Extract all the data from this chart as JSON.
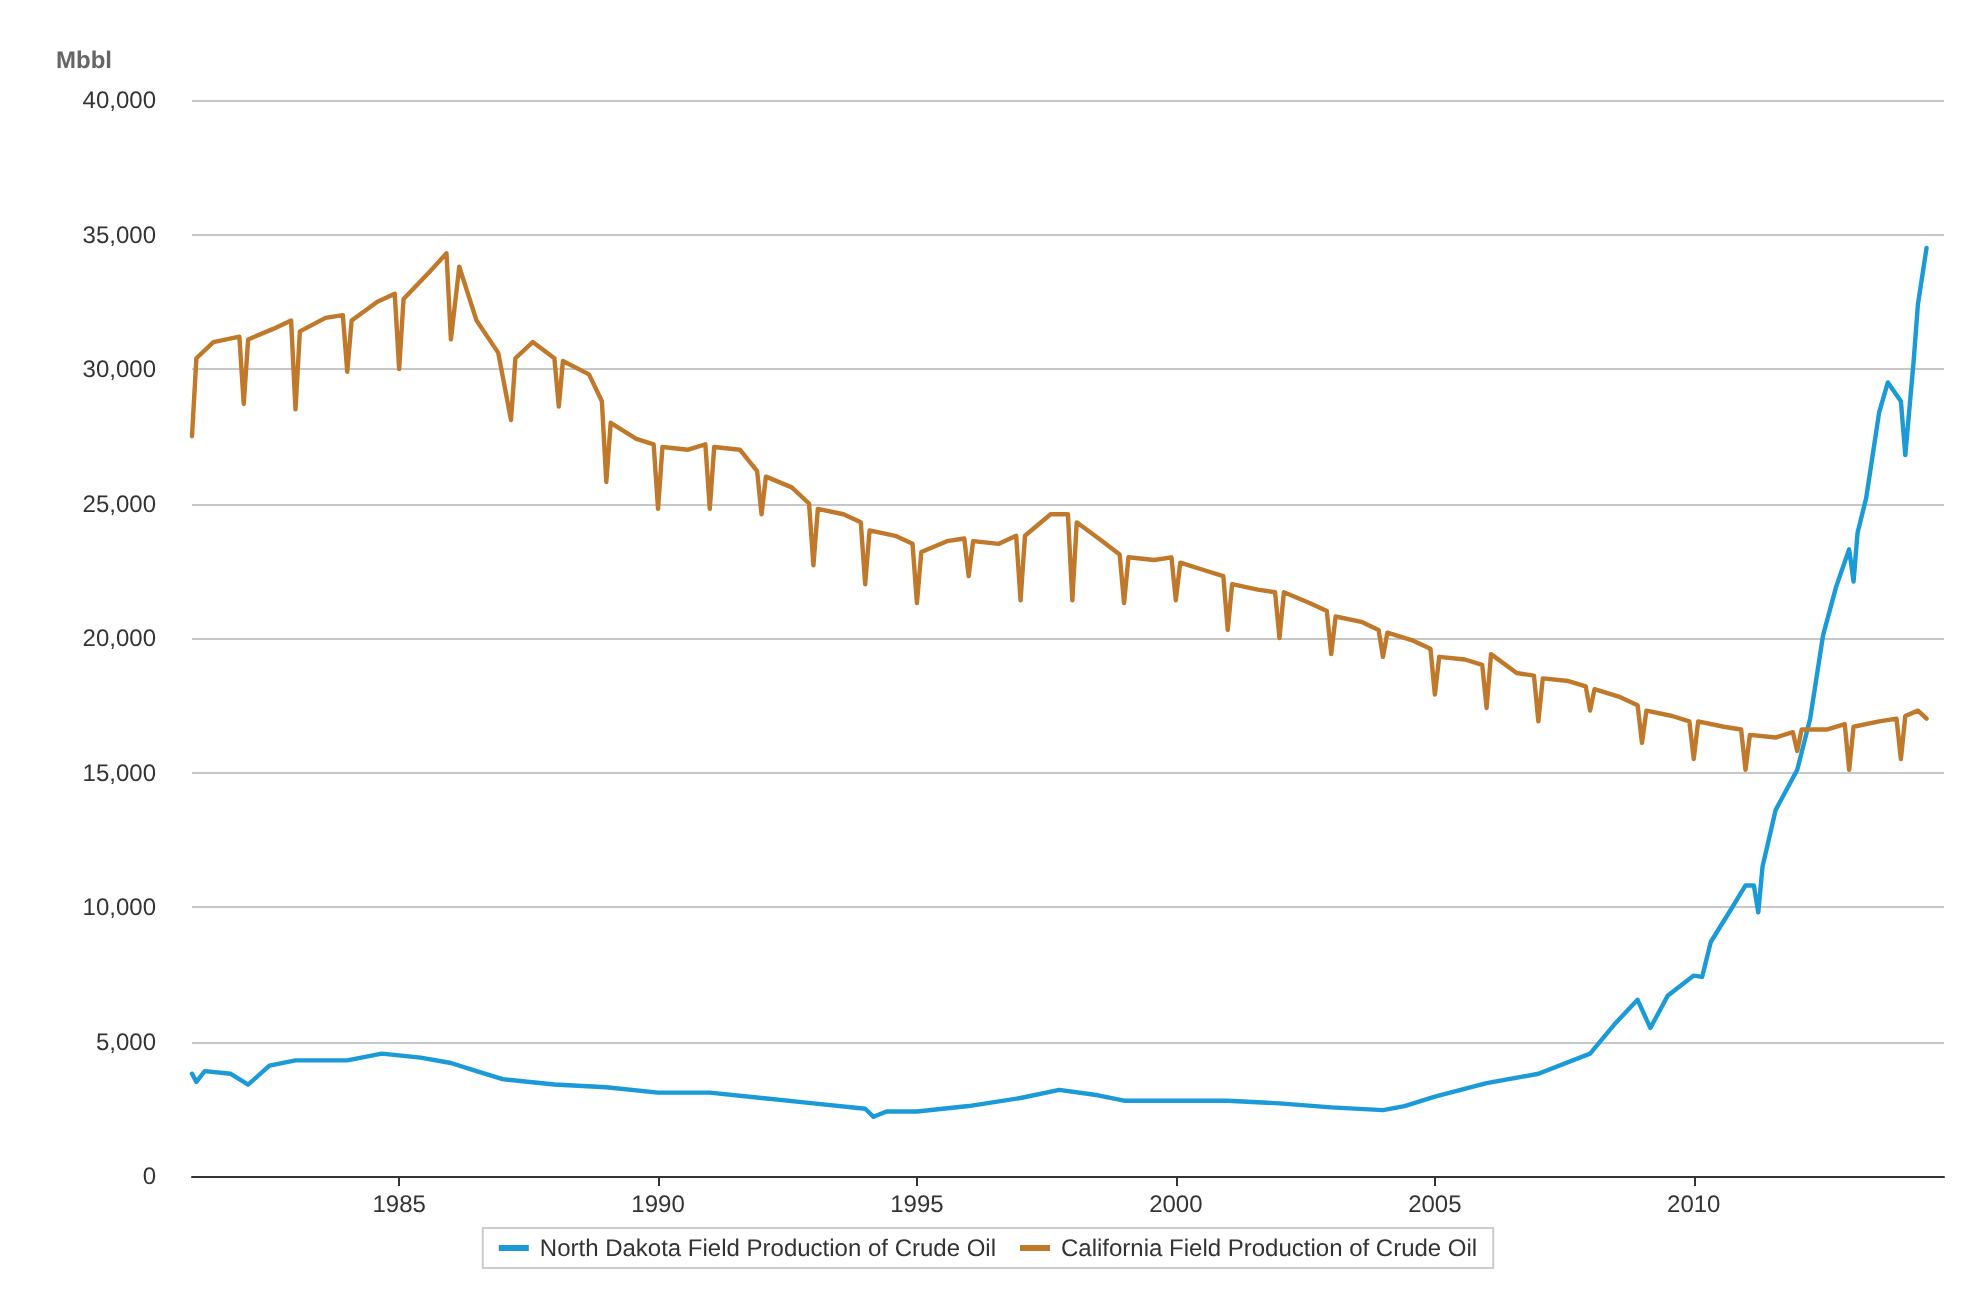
{
  "chart_data": {
    "type": "line",
    "ylabel": "Mbbl",
    "x": [
      "1981-01",
      "1981-02",
      "1981-06",
      "1981-12",
      "1982-01",
      "1982-02",
      "1982-08",
      "1982-12",
      "1983-01",
      "1983-02",
      "1983-08",
      "1983-12",
      "1984-01",
      "1984-02",
      "1984-08",
      "1984-12",
      "1985-01",
      "1985-02",
      "1985-08",
      "1985-12",
      "1986-01",
      "1986-03",
      "1986-07",
      "1986-12",
      "1987-03",
      "1987-04",
      "1987-08",
      "1988-01",
      "1988-02",
      "1988-03",
      "1988-09",
      "1988-12",
      "1989-01",
      "1989-02",
      "1989-08",
      "1989-12",
      "1990-01",
      "1990-02",
      "1990-08",
      "1990-12",
      "1991-01",
      "1991-02",
      "1991-08",
      "1991-12",
      "1992-01",
      "1992-02",
      "1992-08",
      "1992-12",
      "1993-01",
      "1993-02",
      "1993-08",
      "1993-12",
      "1994-01",
      "1994-02",
      "1994-08",
      "1994-12",
      "1995-01",
      "1995-02",
      "1995-08",
      "1995-12",
      "1996-01",
      "1996-02",
      "1996-08",
      "1996-12",
      "1997-01",
      "1997-02",
      "1997-08",
      "1997-12",
      "1998-01",
      "1998-02",
      "1998-08",
      "1998-12",
      "1999-01",
      "1999-02",
      "1999-08",
      "1999-12",
      "2000-01",
      "2000-02",
      "2000-08",
      "2000-12",
      "2001-01",
      "2001-02",
      "2001-08",
      "2001-12",
      "2002-01",
      "2002-02",
      "2002-08",
      "2002-12",
      "2003-01",
      "2003-02",
      "2003-08",
      "2003-12",
      "2004-01",
      "2004-02",
      "2004-08",
      "2004-12",
      "2005-01",
      "2005-02",
      "2005-08",
      "2005-12",
      "2006-01",
      "2006-02",
      "2006-08",
      "2006-12",
      "2007-01",
      "2007-02",
      "2007-08",
      "2007-12",
      "2008-01",
      "2008-02",
      "2008-08",
      "2008-12",
      "2009-01",
      "2009-02",
      "2009-08",
      "2009-12",
      "2010-01",
      "2010-02",
      "2010-08",
      "2010-12",
      "2011-01",
      "2011-02",
      "2011-08",
      "2011-12",
      "2012-01",
      "2012-02",
      "2012-08",
      "2012-12",
      "2013-01",
      "2013-02",
      "2013-08",
      "2013-12",
      "2014-01",
      "2014-02",
      "2014-05",
      "2014-07"
    ],
    "series": [
      {
        "name": "North Dakota Field Production of Crude Oil",
        "color": "#1a9ad6",
        "x": [
          "1981-01",
          "1981-02",
          "1981-04",
          "1981-10",
          "1982-02",
          "1982-07",
          "1983-01",
          "1983-07",
          "1984-01",
          "1984-09",
          "1985-06",
          "1986-01",
          "1986-07",
          "1987-01",
          "1988-01",
          "1989-01",
          "1990-01",
          "1991-01",
          "1992-01",
          "1993-01",
          "1994-01",
          "1994-03",
          "1994-06",
          "1995-01",
          "1996-01",
          "1997-01",
          "1997-10",
          "1998-07",
          "1999-01",
          "2000-01",
          "2001-01",
          "2002-01",
          "2003-01",
          "2004-01",
          "2004-06",
          "2005-01",
          "2006-01",
          "2007-01",
          "2008-01",
          "2008-07",
          "2008-12",
          "2009-03",
          "2009-07",
          "2010-01",
          "2010-03",
          "2010-05",
          "2010-10",
          "2011-01",
          "2011-03",
          "2011-04",
          "2011-05",
          "2011-08",
          "2012-01",
          "2012-04",
          "2012-07",
          "2012-10",
          "2013-01",
          "2013-02",
          "2013-03",
          "2013-05",
          "2013-08",
          "2013-10",
          "2014-01",
          "2014-02",
          "2014-04",
          "2014-05",
          "2014-07"
        ],
        "values": [
          3800,
          3500,
          3900,
          3800,
          3400,
          4100,
          4300,
          4300,
          4300,
          4550,
          4400,
          4200,
          3900,
          3600,
          3400,
          3300,
          3100,
          3100,
          2900,
          2700,
          2500,
          2200,
          2400,
          2400,
          2600,
          2900,
          3200,
          3000,
          2800,
          2800,
          2800,
          2700,
          2550,
          2450,
          2600,
          2950,
          3450,
          3800,
          4550,
          5700,
          6550,
          5500,
          6700,
          7450,
          7400,
          8700,
          10000,
          10800,
          10800,
          9800,
          11500,
          13600,
          15100,
          17000,
          20100,
          21900,
          23300,
          22100,
          23900,
          25200,
          28400,
          29500,
          28800,
          26800,
          30300,
          32400,
          34500
        ]
      },
      {
        "name": "California Field Production of Crude Oil",
        "color": "#c0782a",
        "values": [
          27500,
          30400,
          31000,
          31200,
          28700,
          31100,
          31500,
          31800,
          28500,
          31400,
          31900,
          32000,
          29900,
          31800,
          32500,
          32800,
          30000,
          32600,
          33600,
          34300,
          31100,
          33800,
          31800,
          30600,
          28100,
          30400,
          31000,
          30400,
          28600,
          30300,
          29800,
          28800,
          25800,
          28000,
          27400,
          27200,
          24800,
          27100,
          27000,
          27200,
          24800,
          27100,
          27000,
          26200,
          24600,
          26000,
          25600,
          25000,
          22700,
          24800,
          24600,
          24300,
          22000,
          24000,
          23800,
          23500,
          21300,
          23200,
          23600,
          23700,
          22300,
          23600,
          23500,
          23800,
          21400,
          23800,
          24600,
          24600,
          21400,
          24300,
          23600,
          23100,
          21300,
          23000,
          22900,
          23000,
          21400,
          22800,
          22500,
          22300,
          20300,
          22000,
          21800,
          21700,
          20000,
          21700,
          21300,
          21000,
          19400,
          20800,
          20600,
          20300,
          19300,
          20200,
          19900,
          19600,
          17900,
          19300,
          19200,
          19000,
          17400,
          19400,
          18700,
          18600,
          16900,
          18500,
          18400,
          18200,
          17300,
          18100,
          17800,
          17500,
          16100,
          17300,
          17100,
          16900,
          15500,
          16900,
          16700,
          16600,
          15100,
          16400,
          16300,
          16500,
          15800,
          16600,
          16600,
          16800,
          15100,
          16700,
          16900,
          17000,
          15500,
          17100,
          17300,
          17000
        ]
      }
    ],
    "xlim": [
      "1981-01",
      "2014-11"
    ],
    "xticks": [
      "1985",
      "1990",
      "1995",
      "2000",
      "2005",
      "2010"
    ],
    "ylim": [
      0,
      40000
    ],
    "yticks": [
      0,
      {
        "value": 5000,
        "label": "5,000"
      },
      {
        "value": 10000,
        "label": "10,000"
      },
      {
        "value": 15000,
        "label": "15,000"
      },
      {
        "value": 20000,
        "label": "20,000"
      },
      {
        "value": 25000,
        "label": "25,000"
      },
      {
        "value": 30000,
        "label": "30,000"
      },
      {
        "value": 35000,
        "label": "35,000"
      },
      {
        "value": 40000,
        "label": "40,000"
      }
    ],
    "grid": "y",
    "legend": "bottom",
    "marker": "none",
    "line_style": "solid"
  }
}
